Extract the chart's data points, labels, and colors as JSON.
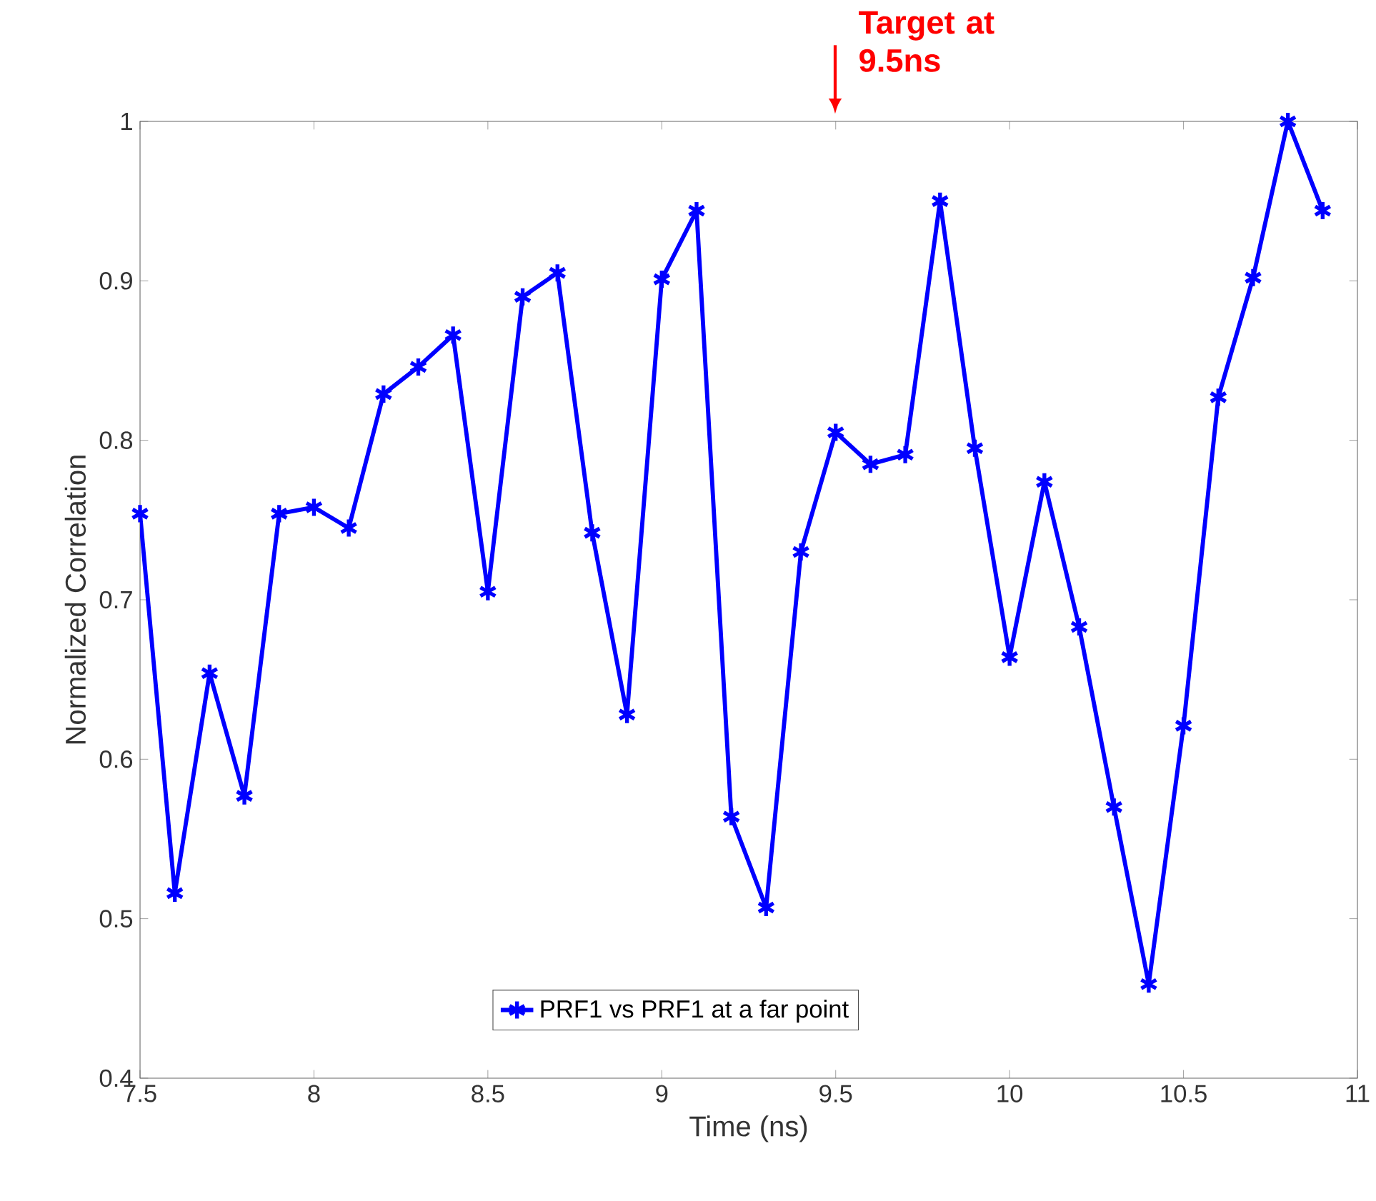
{
  "chart_data": {
    "type": "line",
    "xlabel": "Time (ns)",
    "ylabel": "Normalized Correlation",
    "x": [
      7.5,
      7.6,
      7.7,
      7.8,
      7.9,
      8.0,
      8.1,
      8.2,
      8.3,
      8.4,
      8.5,
      8.6,
      8.7,
      8.8,
      8.9,
      9.0,
      9.1,
      9.2,
      9.3,
      9.4,
      9.5,
      9.6,
      9.7,
      9.8,
      9.9,
      10.0,
      10.1,
      10.2,
      10.3,
      10.4,
      10.5,
      10.6,
      10.7,
      10.8,
      10.9
    ],
    "series": [
      {
        "name": "PRF1 vs PRF1 at a far point",
        "color": "#0000ff",
        "values": [
          0.754,
          0.516,
          0.654,
          0.577,
          0.754,
          0.758,
          0.745,
          0.829,
          0.846,
          0.866,
          0.705,
          0.89,
          0.905,
          0.742,
          0.628,
          0.901,
          0.944,
          0.564,
          0.507,
          0.73,
          0.805,
          0.785,
          0.791,
          0.95,
          0.795,
          0.664,
          0.774,
          0.683,
          0.57,
          0.459,
          0.621,
          0.827,
          0.902,
          1.0,
          0.944
        ]
      }
    ],
    "xlim": [
      7.5,
      11
    ],
    "ylim": [
      0.4,
      1
    ],
    "xticks": [
      7.5,
      8,
      8.5,
      9,
      9.5,
      10,
      10.5,
      11
    ],
    "yticks": [
      0.4,
      0.5,
      0.6,
      0.7,
      0.8,
      0.9,
      1
    ],
    "annotations": [
      "Target at 9.5ns"
    ],
    "legend": "bottom",
    "marker": "cross",
    "line_style": "solid",
    "grid": false
  }
}
